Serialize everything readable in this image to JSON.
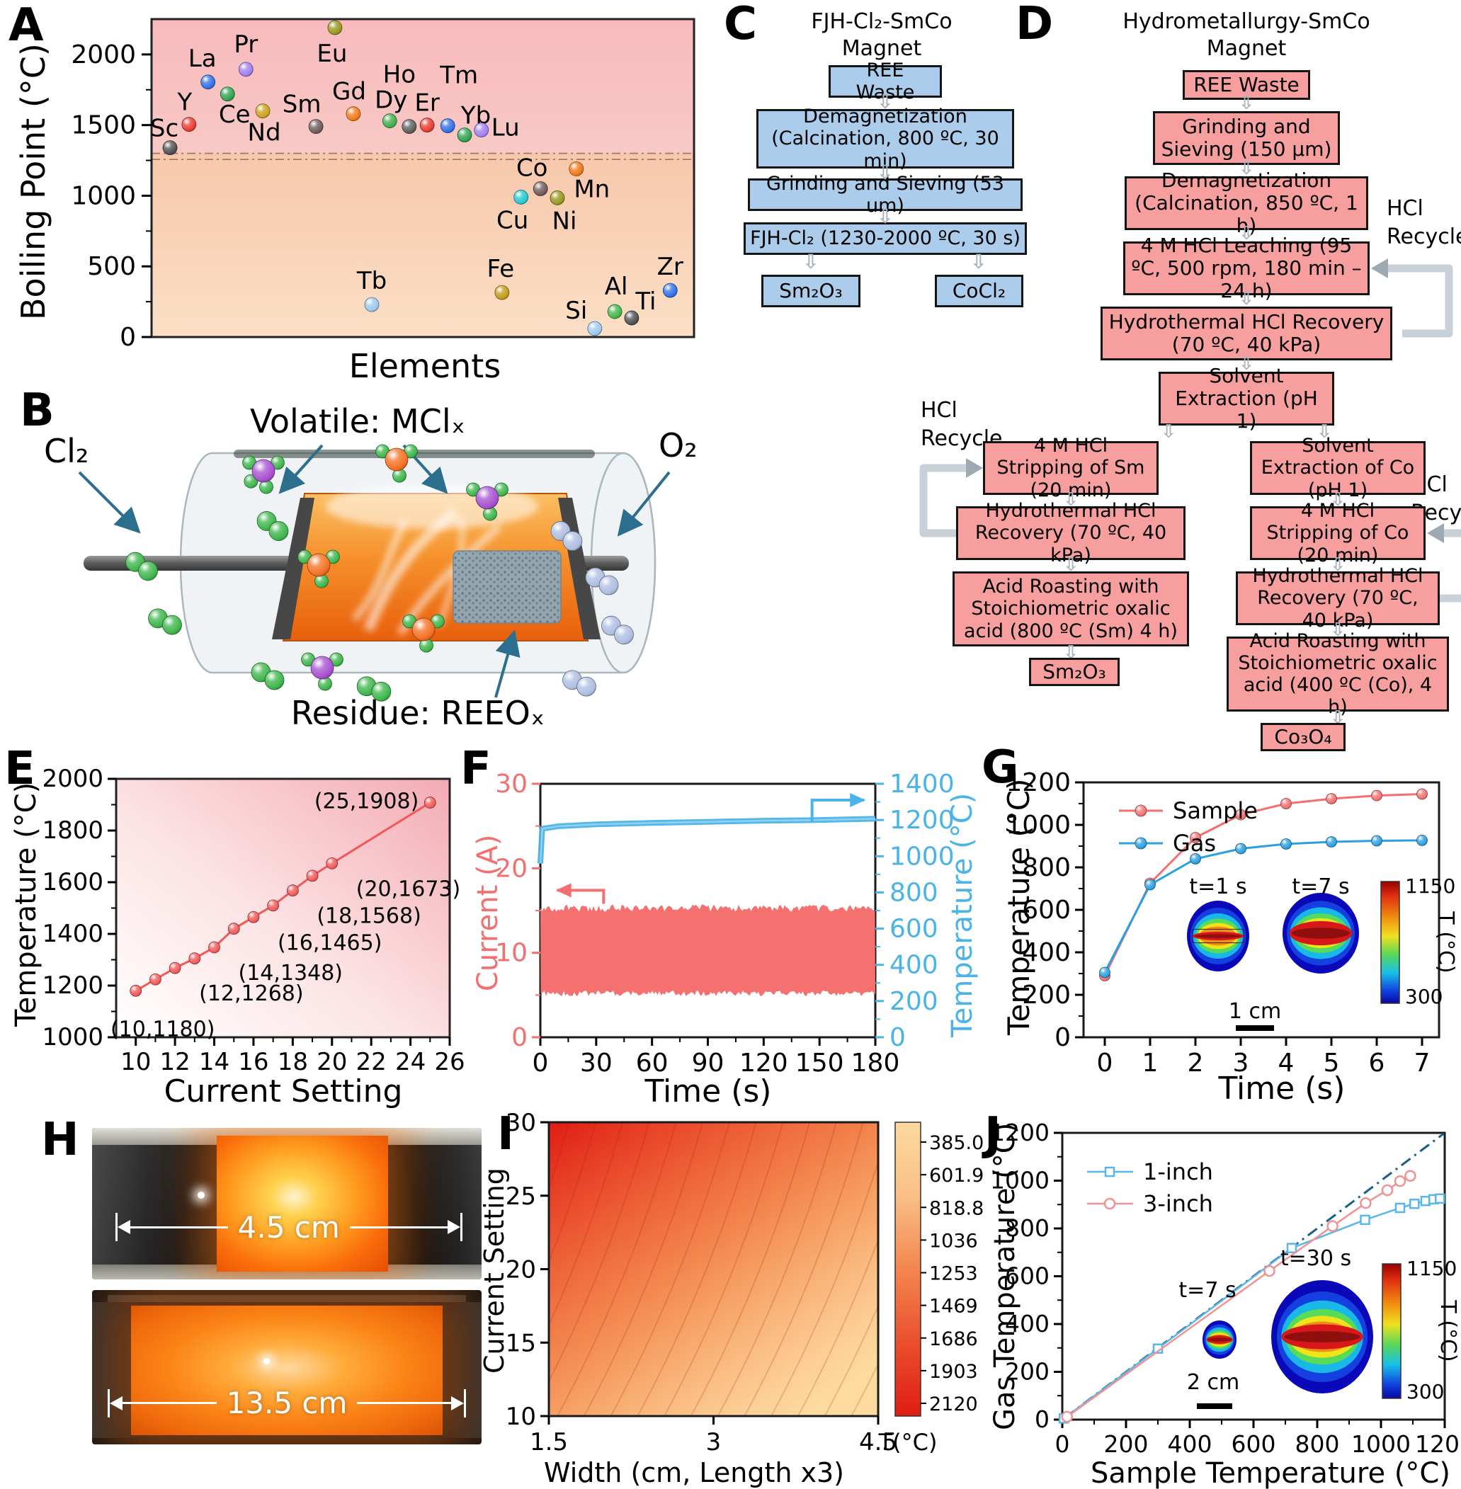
{
  "panels": {
    "a": {
      "letter": "A",
      "ylabel": "Boiling Point (°C)",
      "xlabel": "Elements",
      "ymax": 2250,
      "yticks": [
        0,
        500,
        1000,
        1500,
        2000
      ],
      "dashed_lines": [
        1300,
        1257
      ],
      "chart_data": {
        "type": "scatter",
        "note": "boiling point per element; pos = fractional position on unlabeled Elements axis",
        "points": [
          {
            "el": "Sc",
            "bp": 1340,
            "pos": 0.034,
            "color": "#4f4f4f",
            "lx": -8,
            "ly": -16
          },
          {
            "el": "Y",
            "bp": 1505,
            "pos": 0.069,
            "color": "#e8392f",
            "lx": -6,
            "ly": -20
          },
          {
            "el": "La",
            "bp": 1805,
            "pos": 0.104,
            "color": "#2f6fe4",
            "lx": -8,
            "ly": -22
          },
          {
            "el": "Ce",
            "bp": 1720,
            "pos": 0.14,
            "color": "#2fa14f",
            "lx": 10,
            "ly": 40
          },
          {
            "el": "Pr",
            "bp": 1895,
            "pos": 0.174,
            "color": "#a07ef0",
            "lx": 0,
            "ly": -24
          },
          {
            "el": "Nd",
            "bp": 1600,
            "pos": 0.205,
            "color": "#c9a21d",
            "lx": 2,
            "ly": 42
          },
          {
            "el": "Sm",
            "bp": 1490,
            "pos": 0.303,
            "color": "#6e5a58",
            "lx": -20,
            "ly": -20
          },
          {
            "el": "Eu",
            "bp": 2190,
            "pos": 0.338,
            "color": "#97971c",
            "lx": -4,
            "ly": 48
          },
          {
            "el": "Gd",
            "bp": 1580,
            "pos": 0.372,
            "color": "#f07818",
            "lx": -6,
            "ly": -20
          },
          {
            "el": "Dy",
            "bp": 1530,
            "pos": 0.439,
            "color": "#3fae49",
            "lx": 2,
            "ly": -18
          },
          {
            "el": "Ho",
            "bp": 1490,
            "pos": 0.475,
            "color": "#5c5c5c",
            "lx": -14,
            "ly": -62
          },
          {
            "el": "Er",
            "bp": 1500,
            "pos": 0.508,
            "color": "#e8392f",
            "lx": 0,
            "ly": -20
          },
          {
            "el": "Tm",
            "bp": 1495,
            "pos": 0.546,
            "color": "#2f6fe4",
            "lx": 16,
            "ly": -60
          },
          {
            "el": "Yb",
            "bp": 1430,
            "pos": 0.577,
            "color": "#2fa14f",
            "lx": 16,
            "ly": -16
          },
          {
            "el": "Lu",
            "bp": 1465,
            "pos": 0.608,
            "color": "#a07ef0",
            "lx": 34,
            "ly": 8
          },
          {
            "el": "Tb",
            "bp": 230,
            "pos": 0.406,
            "color": "#9ec7ee",
            "lx": 0,
            "ly": -22
          },
          {
            "el": "Fe",
            "bp": 315,
            "pos": 0.646,
            "color": "#c19a15",
            "lx": -2,
            "ly": -22
          },
          {
            "el": "Cu",
            "bp": 990,
            "pos": 0.681,
            "color": "#21c8cf",
            "lx": -12,
            "ly": 44
          },
          {
            "el": "Co",
            "bp": 1050,
            "pos": 0.717,
            "color": "#6e5a58",
            "lx": -12,
            "ly": -18
          },
          {
            "el": "Ni",
            "bp": 985,
            "pos": 0.748,
            "color": "#97971c",
            "lx": 10,
            "ly": 44
          },
          {
            "el": "Mn",
            "bp": 1190,
            "pos": 0.783,
            "color": "#f07818",
            "lx": 22,
            "ly": 40
          },
          {
            "el": "Si",
            "bp": 60,
            "pos": 0.817,
            "color": "#9ec7ee",
            "lx": -26,
            "ly": -14
          },
          {
            "el": "Al",
            "bp": 180,
            "pos": 0.854,
            "color": "#41b649",
            "lx": 2,
            "ly": -24
          },
          {
            "el": "Ti",
            "bp": 135,
            "pos": 0.885,
            "color": "#4f4f4f",
            "lx": 20,
            "ly": -12
          },
          {
            "el": "Zr",
            "bp": 330,
            "pos": 0.956,
            "color": "#2f6fe4",
            "lx": 0,
            "ly": -22
          }
        ]
      }
    },
    "b": {
      "letter": "B",
      "labels": {
        "cl2": "Cl₂",
        "volatile": "Volatile: MClₓ",
        "o2": "O₂",
        "residue": "Residue: REEOₓ"
      }
    },
    "c": {
      "letter": "C",
      "title1": "FJH-Cl₂-SmCo",
      "title2": "Magnet",
      "steps": [
        "REE Waste",
        "Demagnetization (Calcination, 800 ºC,  30 min)",
        "Grinding and Sieving (53 um)",
        "FJH-Cl₂ (1230-2000 ºC, 30 s)"
      ],
      "outputs": [
        "Sm₂O₃",
        "CoCl₂"
      ]
    },
    "d": {
      "letter": "D",
      "title1": "Hydrometallurgy-SmCo",
      "title2": "Magnet",
      "main": [
        "REE Waste",
        "Grinding and Sieving (150 μm)",
        "Demagnetization (Calcination, 850 ºC, 1 h)",
        "4 M HCl Leaching (95 ºC, 500 rpm, 180 min – 24 h)",
        "Hydrothermal HCl Recovery (70 ºC, 40 kPa)",
        "Solvent Extraction (pH 1)"
      ],
      "left_branch": [
        "4 M HCl Stripping of Sm (20 min)",
        "Hydrothermal HCl Recovery (70 ºC, 40 kPa)",
        "Acid Roasting with Stoichiometric oxalic acid (800 ºC (Sm) 4 h)"
      ],
      "left_output": "Sm₂O₃",
      "right_branch": [
        "Solvent Extraction of Co (pH 1)",
        "4 M HCl Stripping of Co (20 min)",
        "Hydrothermal HCl Recovery (70 ºC, 40 kPa)",
        "Acid Roasting with Stoichiometric oxalic acid (400 ºC (Co), 4 h)"
      ],
      "right_output": "Co₃O₄",
      "recycle_line1": "HCl",
      "recycle_line2": "Recycle"
    },
    "e": {
      "letter": "E",
      "xlabel": "Current Setting",
      "ylabel": "Temperature (°C)",
      "chart_data": {
        "type": "line",
        "xlim": [
          9,
          26
        ],
        "ylim": [
          1000,
          2000
        ],
        "xticks": [
          10,
          12,
          14,
          16,
          18,
          20,
          22,
          24,
          26
        ],
        "yticks": [
          1000,
          1200,
          1400,
          1600,
          1800,
          2000
        ],
        "color": "#f25858",
        "points": [
          [
            10,
            1180
          ],
          [
            11,
            1224
          ],
          [
            12,
            1268
          ],
          [
            13,
            1305
          ],
          [
            14,
            1348
          ],
          [
            15,
            1420
          ],
          [
            16,
            1465
          ],
          [
            17,
            1510
          ],
          [
            18,
            1568
          ],
          [
            19,
            1625
          ],
          [
            20,
            1673
          ],
          [
            25,
            1908
          ]
        ],
        "labels": [
          {
            "point": 10,
            "text": "(10,1180)",
            "side": "below"
          },
          {
            "point": 12,
            "text": "(12,1268)",
            "side": "br"
          },
          {
            "point": 14,
            "text": "(14,1348)",
            "side": "br"
          },
          {
            "point": 16,
            "text": "(16,1465)",
            "side": "br"
          },
          {
            "point": 18,
            "text": "(18,1568)",
            "side": "br"
          },
          {
            "point": 20,
            "text": "(20,1673)",
            "side": "br"
          },
          {
            "point": 25,
            "text": "(25,1908)",
            "side": "left"
          }
        ]
      }
    },
    "f": {
      "letter": "F",
      "xlabel": "Time (s)",
      "ylabel_left": "Current (A)",
      "ylabel_right": "Temperature (°C)",
      "chart_data": {
        "type": "line",
        "x_range": [
          0,
          180
        ],
        "xticks": [
          0,
          30,
          60,
          90,
          120,
          150,
          180
        ],
        "left_axis": {
          "range": [
            0,
            30
          ],
          "ticks": [
            0,
            10,
            20,
            30
          ],
          "color": "#f2706f"
        },
        "right_axis": {
          "range": [
            0,
            1400
          ],
          "ticks": [
            0,
            200,
            400,
            600,
            800,
            1000,
            1200,
            1400
          ],
          "color": "#4ab3e8"
        },
        "current_band": {
          "min": 5.2,
          "max": 15.3
        },
        "temperature_series": {
          "x": [
            0,
            1,
            10,
            30,
            60,
            90,
            120,
            150,
            180
          ],
          "y": [
            960,
            1152,
            1166,
            1176,
            1184,
            1190,
            1196,
            1200,
            1207
          ]
        }
      }
    },
    "g": {
      "letter": "G",
      "xlabel": "Time (s)",
      "ylabel": "Temperature (°C)",
      "chart_data": {
        "type": "line",
        "x": [
          0,
          1,
          2,
          3,
          4,
          5,
          6,
          7
        ],
        "ylim": [
          0,
          1200
        ],
        "yticks": [
          0,
          200,
          400,
          600,
          800,
          1000,
          1200
        ],
        "series": [
          {
            "name": "Sample",
            "color": "#f2706f",
            "values": [
              290,
              725,
              940,
              1048,
              1100,
              1123,
              1138,
              1145
            ]
          },
          {
            "name": "Gas",
            "color": "#2b9fe0",
            "values": [
              305,
              718,
              840,
              888,
              910,
              920,
              925,
              927
            ]
          }
        ],
        "inset": {
          "label1": "t=1 s",
          "label2": "t=7 s",
          "scalebar": "1 cm",
          "cb_max": "1150",
          "cb_min": "300",
          "cb_label": "T (°C)"
        }
      }
    },
    "h": {
      "letter": "H",
      "top_caption": "4.5 cm",
      "bottom_caption": "13.5 cm"
    },
    "i": {
      "letter": "I",
      "xlabel": "Width (cm, Length x3)",
      "ylabel": "Current Setting",
      "chart_data": {
        "type": "heatmap",
        "xticks": [
          "1.5",
          "3",
          "4.5"
        ],
        "yticks": [
          10,
          15,
          20,
          25,
          30
        ],
        "colorbar_ticks": [
          "385.0",
          "601.9",
          "818.8",
          "1036",
          "1253",
          "1469",
          "1686",
          "1903",
          "2120"
        ],
        "colorbar_label": "T(°C)",
        "description": "temperature field: hottest (~2120 °C, deep red) at top-left, coolest (~385 °C, pale orange) at bottom-right"
      }
    },
    "j": {
      "letter": "J",
      "xlabel": "Sample Temperature (°C)",
      "ylabel": "Gas Temperature (°C)",
      "chart_data": {
        "type": "scatter-line",
        "xlim": [
          0,
          1200
        ],
        "ylim": [
          0,
          1200
        ],
        "ticks": [
          0,
          200,
          400,
          600,
          800,
          1000,
          1200
        ],
        "reference_line": "y = x (dash-dot)",
        "series": [
          {
            "name": "1-inch",
            "color": "#58b7e8",
            "marker": "square",
            "points": [
              [
                5,
                5
              ],
              [
                300,
                297
              ],
              [
                720,
                718
              ],
              [
                950,
                836
              ],
              [
                1060,
                886
              ],
              [
                1105,
                903
              ],
              [
                1140,
                915
              ],
              [
                1165,
                922
              ],
              [
                1185,
                925
              ]
            ]
          },
          {
            "name": "3-inch",
            "color": "#f29191",
            "marker": "circle",
            "points": [
              [
                15,
                12
              ],
              [
                650,
                622
              ],
              [
                848,
                810
              ],
              [
                952,
                906
              ],
              [
                1020,
                960
              ],
              [
                1060,
                998
              ],
              [
                1092,
                1020
              ]
            ]
          }
        ],
        "inset": {
          "label1": "t=7 s",
          "label2": "t=30 s",
          "scalebar": "2 cm",
          "cb_max": "1150",
          "cb_min": "300",
          "cb_label": "T (°C)"
        }
      }
    }
  }
}
